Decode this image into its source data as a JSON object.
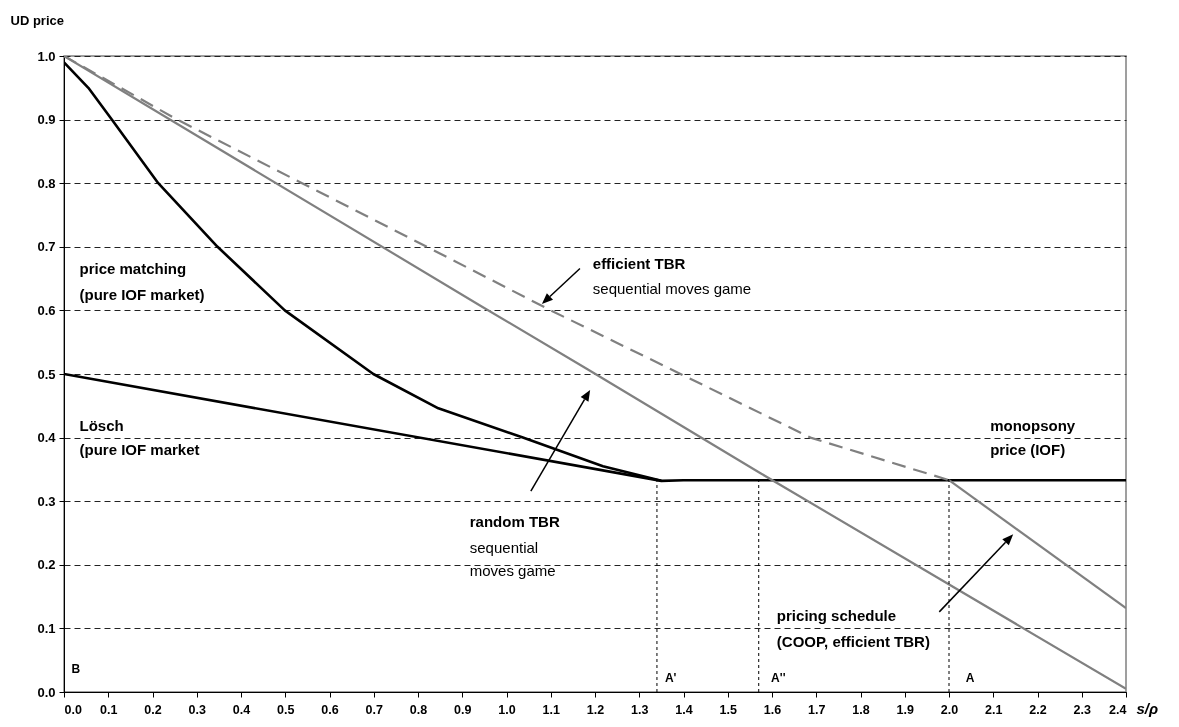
{
  "chart_data": {
    "type": "line",
    "xlabel": "s/ρ",
    "ylabel": "UD price",
    "xlim": [
      0,
      2.4
    ],
    "ylim": [
      0,
      1
    ],
    "xticks": [
      {
        "value": 0,
        "label": "0.0"
      },
      0.1,
      0.2,
      0.3,
      0.4,
      0.5,
      0.6,
      0.7,
      0.8,
      0.9,
      {
        "value": 1,
        "label": "1.0"
      },
      1.1,
      1.2,
      1.3,
      1.4,
      1.5,
      1.6,
      1.7,
      1.8,
      1.9,
      {
        "value": 2,
        "label": "2.0"
      },
      2.1,
      2.2,
      2.3,
      2.4
    ],
    "yticks": [
      {
        "value": 0,
        "label": "0.0"
      },
      0.1,
      0.2,
      0.3,
      0.4,
      0.5,
      0.6,
      0.7,
      0.8,
      0.9,
      {
        "value": 1,
        "label": "1.0"
      }
    ],
    "grid": "y",
    "series": [
      {
        "color": "#000000",
        "line_style": "solid",
        "x": [
          0,
          0.055,
          0.108,
          0.213,
          0.347,
          0.499,
          0.699,
          0.846,
          1.037,
          1.218,
          1.35
        ],
        "values": [
          0.99,
          0.95,
          0.9,
          0.8,
          0.7,
          0.6,
          0.5,
          0.446,
          0.4,
          0.355,
          0.332
        ]
      },
      {
        "color": "#000000",
        "line_style": "solid",
        "x": [
          0,
          1.35,
          1.4,
          2.4
        ],
        "values": [
          0.5,
          0.332,
          0.333,
          0.333
        ]
      },
      {
        "color": "#808080",
        "line_style": "dashed",
        "x": [
          0,
          0.256,
          0.538,
          0.82,
          1.1,
          1.687,
          2.0
        ],
        "values": [
          1,
          0.9,
          0.8,
          0.7,
          0.6,
          0.4,
          0.333
        ]
      },
      {
        "color": "#808080",
        "line_style": "solid",
        "x": [
          0,
          0.942,
          1.184,
          1.574,
          2.4
        ],
        "values": [
          1,
          0.607,
          0.507,
          0.344,
          0.005
        ]
      },
      {
        "color": "#808080",
        "line_style": "solid",
        "x": [
          2.0,
          2.4
        ],
        "values": [
          0.333,
          0.132
        ]
      },
      {
        "color": "#000000",
        "line_style": "dotted",
        "x": [
          1.34,
          1.34
        ],
        "values": [
          0,
          0.332
        ]
      },
      {
        "color": "#000000",
        "line_style": "dotted",
        "x": [
          1.57,
          1.57
        ],
        "values": [
          0,
          0.333
        ]
      },
      {
        "color": "#000000",
        "line_style": "dotted",
        "x": [
          2.0,
          2.0
        ],
        "values": [
          0,
          0.333
        ]
      }
    ],
    "annotations": [
      "efficient TBR",
      "sequential moves game",
      "price matching",
      "(pure IOF market)",
      "Lösch",
      "(pure IOF market",
      "random TBR",
      "sequential",
      "moves game",
      "monopsony",
      "price (IOF)",
      "pricing schedule",
      "(COOP, efficient TBR)",
      "B",
      "A'",
      "A''",
      "A"
    ]
  }
}
